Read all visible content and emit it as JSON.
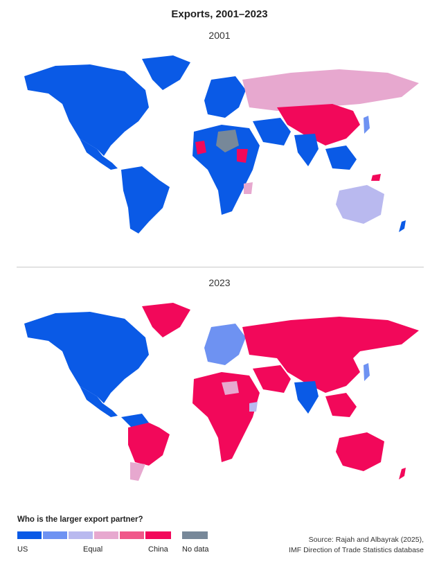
{
  "title": "Exports, 2001–2023",
  "maps": [
    {
      "year": "2001"
    },
    {
      "year": "2023"
    }
  ],
  "legend": {
    "question": "Who is the larger export partner?",
    "scale": [
      {
        "label": "US",
        "color": "#0a5ae6"
      },
      {
        "label": "",
        "color": "#6e92f2"
      },
      {
        "label": "Equal",
        "color": "#b9b9ef"
      },
      {
        "label": "",
        "color": "#e7a8cf"
      },
      {
        "label": "",
        "color": "#f0588a"
      },
      {
        "label": "China",
        "color": "#f2085a"
      }
    ],
    "no_data": {
      "label": "No data",
      "color": "#778899"
    }
  },
  "source": {
    "line1": "Source: Rajah and Albayrak (2025),",
    "line2": "IMF Direction of Trade Statistics database"
  }
}
